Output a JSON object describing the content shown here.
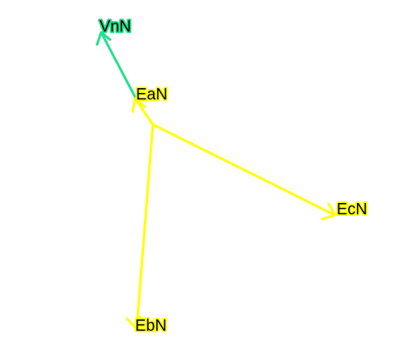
{
  "diagram": {
    "type": "phasor",
    "vectors": [
      {
        "id": "ea",
        "label": "EaN",
        "color": "#ffff00",
        "outline": "#ffff00"
      },
      {
        "id": "eb",
        "label": "EbN",
        "color": "#ffff00",
        "outline": "#ffff00"
      },
      {
        "id": "ec",
        "label": "EcN",
        "color": "#ffff00",
        "outline": "#ffff00"
      },
      {
        "id": "vn",
        "label": "VnN",
        "color": "#22e08a",
        "outline": "#22e08a"
      }
    ]
  }
}
